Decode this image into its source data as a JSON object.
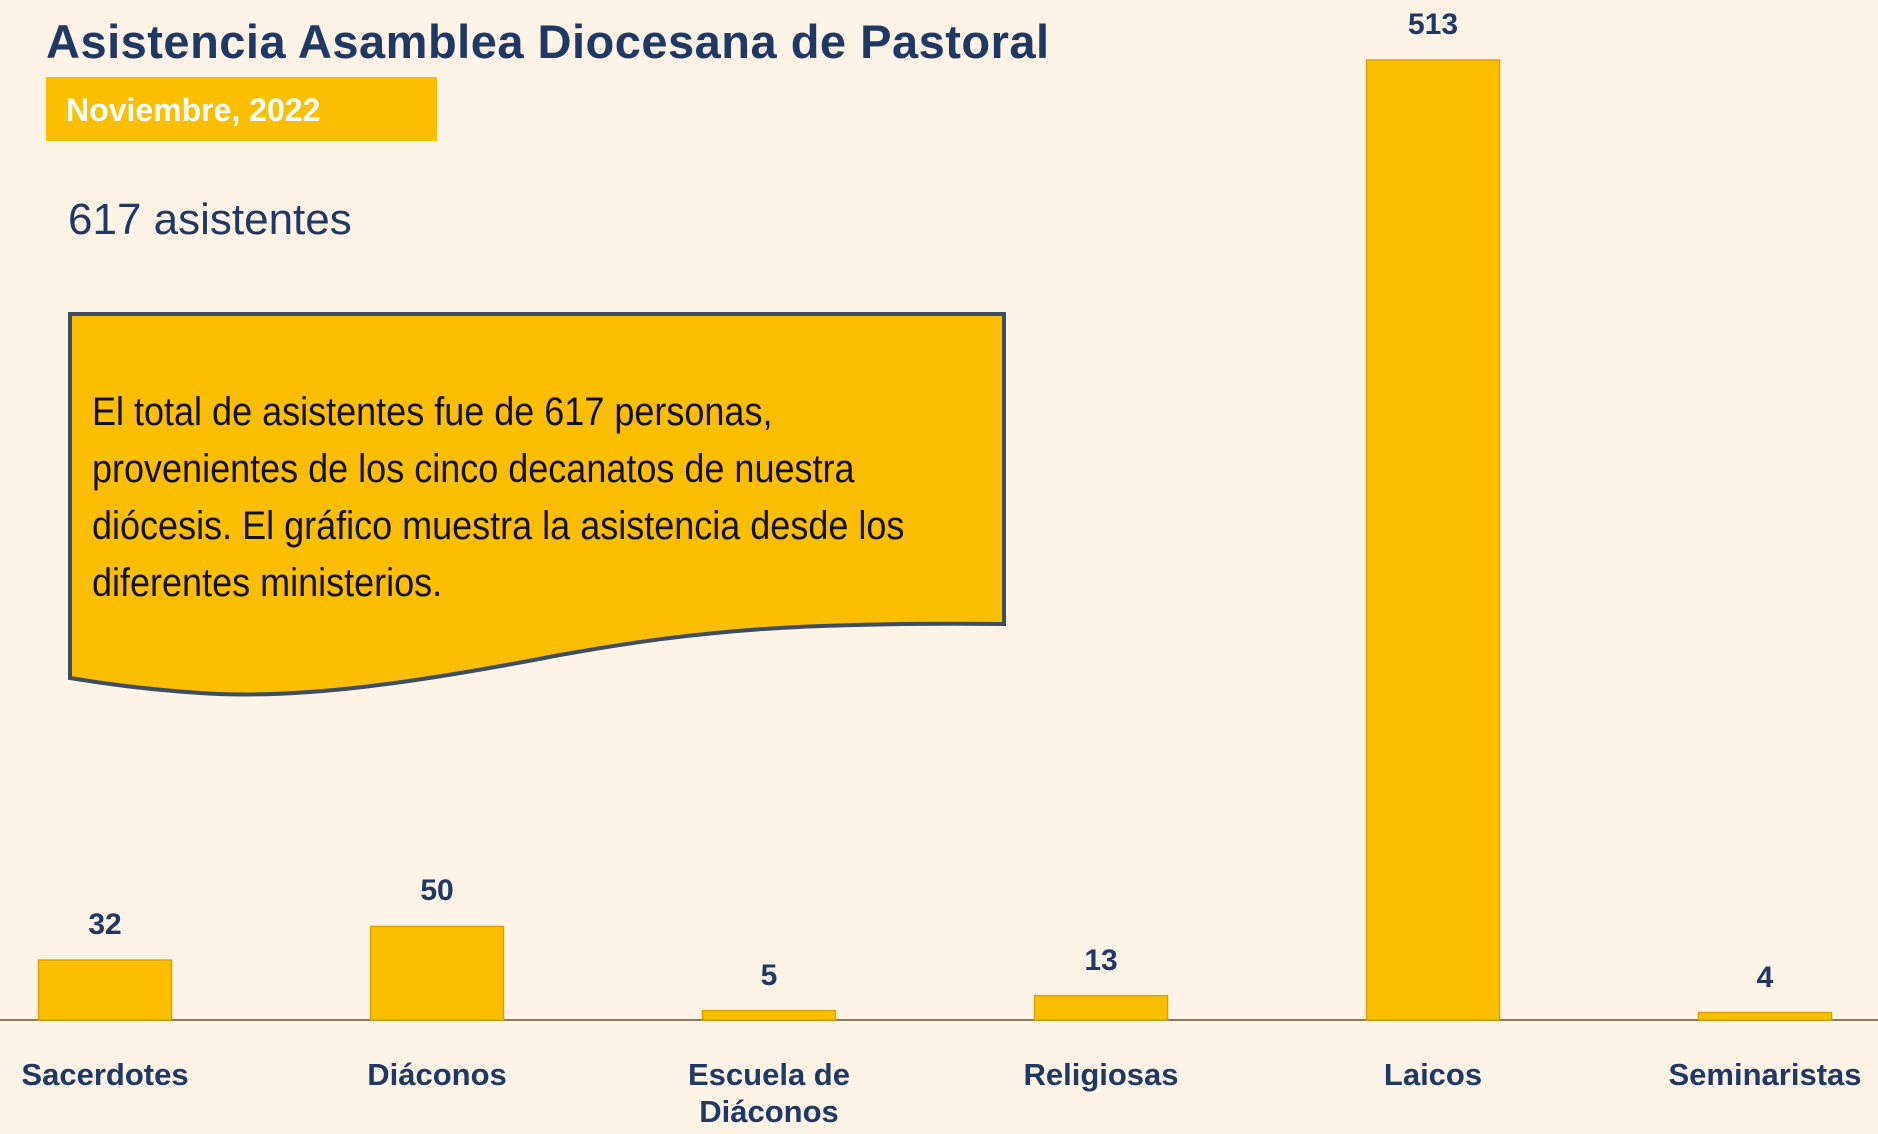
{
  "chart_data": {
    "type": "bar",
    "title": "Asistencia Asamblea Diocesana de Pastoral",
    "subtitle": "Noviembre, 2022",
    "annotations": [
      "617 asistentes",
      "El total de asistentes fue de 617 personas, provenientes de los cinco decanatos de nuestra diócesis. El gráfico muestra la asistencia desde los diferentes ministerios."
    ],
    "categories": [
      "Sacerdotes",
      "Diáconos",
      "Escuela de Diáconos",
      "Religiosas",
      "Laicos",
      "Seminaristas"
    ],
    "values": [
      32,
      50,
      5,
      13,
      513,
      4
    ],
    "color": "#fbbf00"
  }
}
